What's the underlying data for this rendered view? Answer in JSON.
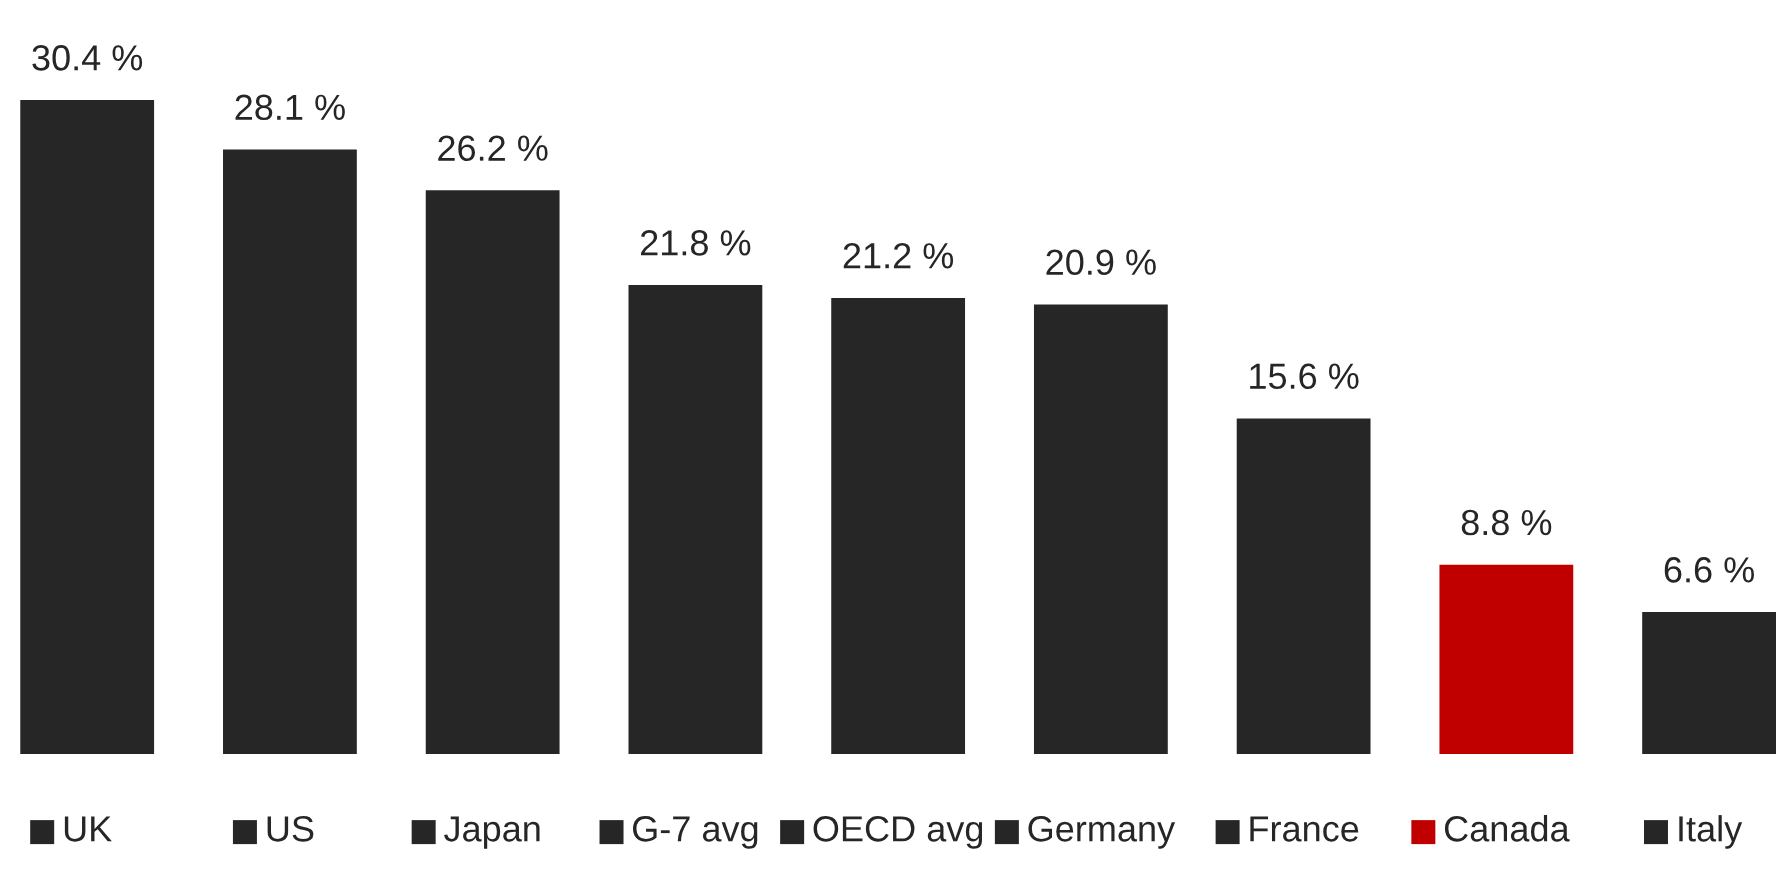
{
  "chart_data": {
    "type": "bar",
    "categories": [
      "UK",
      "US",
      "Japan",
      "G-7 avg",
      "OECD avg",
      "Germany",
      "France",
      "Canada",
      "Italy"
    ],
    "values": [
      30.4,
      28.1,
      26.2,
      21.8,
      21.2,
      20.9,
      15.6,
      8.8,
      6.6
    ],
    "value_labels": [
      "30.4 %",
      "28.1 %",
      "26.2 %",
      "21.8 %",
      "21.2 %",
      "20.9 %",
      "15.6 %",
      "8.8 %",
      "6.6 %"
    ],
    "colors": [
      "#262626",
      "#262626",
      "#262626",
      "#262626",
      "#262626",
      "#262626",
      "#262626",
      "#c00000",
      "#262626"
    ]
  }
}
